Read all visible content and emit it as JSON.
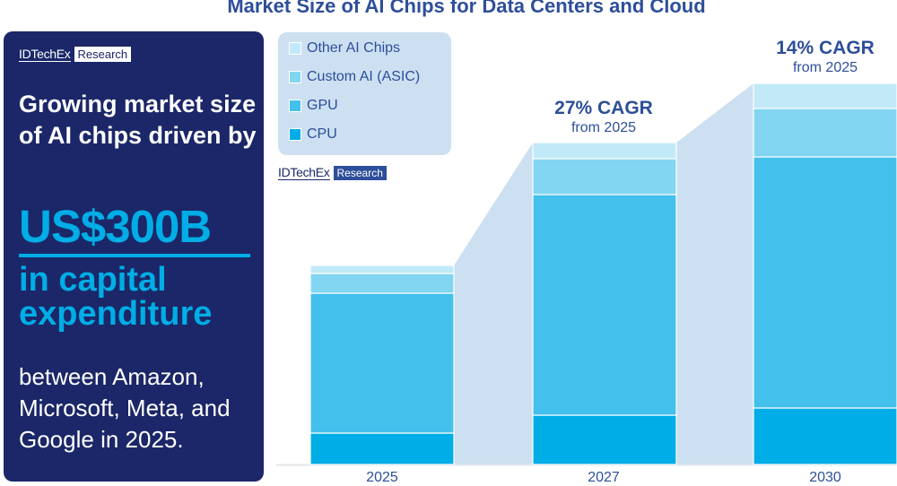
{
  "panel": {
    "logo_name": "IDTechEx",
    "logo_tag": "Research",
    "intro": "Growing market size of AI chips driven by",
    "headline_value": "US$300B",
    "headline_caption": "in capital expenditure",
    "footnote": "between Amazon, Microsoft, Meta, and Google in 2025."
  },
  "chart_logo": {
    "name": "IDTechEx",
    "tag": "Research"
  },
  "annotations": [
    {
      "category": "2027",
      "headline": "27% CAGR",
      "sub": "from 2025"
    },
    {
      "category": "2030",
      "headline": "14% CAGR",
      "sub": "from 2025"
    }
  ],
  "chart_data": {
    "type": "bar",
    "stacked": true,
    "title": "Market Size of AI Chips for Data Centers and Cloud",
    "xlabel": "",
    "ylabel": "",
    "y_axis_shown": false,
    "grid": false,
    "legend_placement": "top-left",
    "categories": [
      "2025",
      "2027",
      "2030"
    ],
    "series": [
      {
        "name": "CPU",
        "color": "#00ade6",
        "values": [
          35,
          55,
          63
        ]
      },
      {
        "name": "GPU",
        "color": "#43c0eb",
        "values": [
          156,
          246,
          280
        ]
      },
      {
        "name": "Custom AI (ASIC)",
        "color": "#82d6f2",
        "values": [
          22,
          40,
          54
        ]
      },
      {
        "name": "Other AI Chips",
        "color": "#c2e9f8",
        "values": [
          9,
          18,
          28
        ]
      }
    ],
    "legend_order": [
      "Other AI Chips",
      "Custom AI (ASIC)",
      "GPU",
      "CPU"
    ]
  },
  "colors": {
    "panel": "#1b2768",
    "accent": "#00ade6",
    "text": "#2d4e9a",
    "connector": "#cce0f1"
  }
}
